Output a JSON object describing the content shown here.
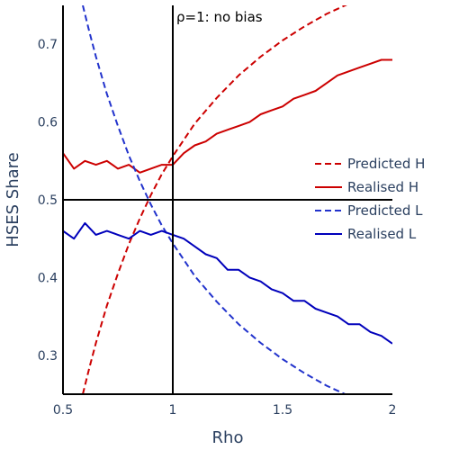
{
  "chart_data": {
    "type": "line",
    "xlabel": "Rho",
    "ylabel": "HSES Share",
    "xlim": [
      0.5,
      2.0
    ],
    "ylim": [
      0.25,
      0.75
    ],
    "xticks": [
      0.5,
      1,
      1.5,
      2
    ],
    "xtick_labels": [
      "0.5",
      "1",
      "1.5",
      "2"
    ],
    "yticks": [
      0.3,
      0.4,
      0.5,
      0.6,
      0.7
    ],
    "ytick_labels": [
      "0.3",
      "0.4",
      "0.5",
      "0.6",
      "0.7"
    ],
    "grid": false,
    "legend_position": "right",
    "reference_lines": {
      "vertical_x": 1,
      "horizontal_y": 0.5
    },
    "annotation": {
      "text": "ρ=1: no bias",
      "x": 1,
      "y": 0.75
    },
    "series": [
      {
        "name": "Predicted H",
        "color": "#cc0000",
        "dash": "dash",
        "x": [
          0.59,
          0.62,
          0.65,
          0.7,
          0.75,
          0.8,
          0.85,
          0.9,
          0.95,
          1.0,
          1.1,
          1.2,
          1.3,
          1.4,
          1.5,
          1.6,
          1.7,
          1.8
        ],
        "values": [
          0.25,
          0.284,
          0.316,
          0.364,
          0.405,
          0.443,
          0.476,
          0.506,
          0.533,
          0.556,
          0.598,
          0.631,
          0.66,
          0.684,
          0.705,
          0.723,
          0.739,
          0.752
        ]
      },
      {
        "name": "Realised  H",
        "color": "#cc0000",
        "dash": "solid",
        "x": [
          0.5,
          0.55,
          0.6,
          0.65,
          0.7,
          0.75,
          0.8,
          0.85,
          0.9,
          0.95,
          1.0,
          1.05,
          1.1,
          1.15,
          1.2,
          1.25,
          1.3,
          1.35,
          1.4,
          1.45,
          1.5,
          1.55,
          1.6,
          1.65,
          1.7,
          1.75,
          1.8,
          1.85,
          1.9,
          1.95,
          2.0
        ],
        "values": [
          0.56,
          0.54,
          0.55,
          0.545,
          0.55,
          0.54,
          0.545,
          0.535,
          0.54,
          0.545,
          0.545,
          0.56,
          0.57,
          0.575,
          0.585,
          0.59,
          0.595,
          0.6,
          0.61,
          0.615,
          0.62,
          0.63,
          0.635,
          0.64,
          0.65,
          0.66,
          0.665,
          0.67,
          0.675,
          0.68,
          0.68
        ]
      },
      {
        "name": "Predicted L",
        "color": "#2233cc",
        "dash": "dash",
        "x": [
          0.59,
          0.62,
          0.65,
          0.7,
          0.75,
          0.8,
          0.85,
          0.9,
          0.95,
          1.0,
          1.1,
          1.2,
          1.3,
          1.4,
          1.5,
          1.6,
          1.7,
          1.8
        ],
        "values": [
          0.75,
          0.716,
          0.684,
          0.636,
          0.595,
          0.557,
          0.524,
          0.494,
          0.467,
          0.444,
          0.402,
          0.369,
          0.34,
          0.316,
          0.295,
          0.277,
          0.261,
          0.248
        ]
      },
      {
        "name": "Realised  L",
        "color": "#0000bb",
        "dash": "solid",
        "x": [
          0.5,
          0.55,
          0.6,
          0.65,
          0.7,
          0.75,
          0.8,
          0.85,
          0.9,
          0.95,
          1.0,
          1.05,
          1.1,
          1.15,
          1.2,
          1.25,
          1.3,
          1.35,
          1.4,
          1.45,
          1.5,
          1.55,
          1.6,
          1.65,
          1.7,
          1.75,
          1.8,
          1.85,
          1.9,
          1.95,
          2.0
        ],
        "values": [
          0.46,
          0.45,
          0.47,
          0.455,
          0.46,
          0.455,
          0.45,
          0.46,
          0.455,
          0.46,
          0.455,
          0.45,
          0.44,
          0.43,
          0.425,
          0.41,
          0.41,
          0.4,
          0.395,
          0.385,
          0.38,
          0.37,
          0.37,
          0.36,
          0.355,
          0.35,
          0.34,
          0.34,
          0.33,
          0.325,
          0.315
        ]
      }
    ]
  }
}
